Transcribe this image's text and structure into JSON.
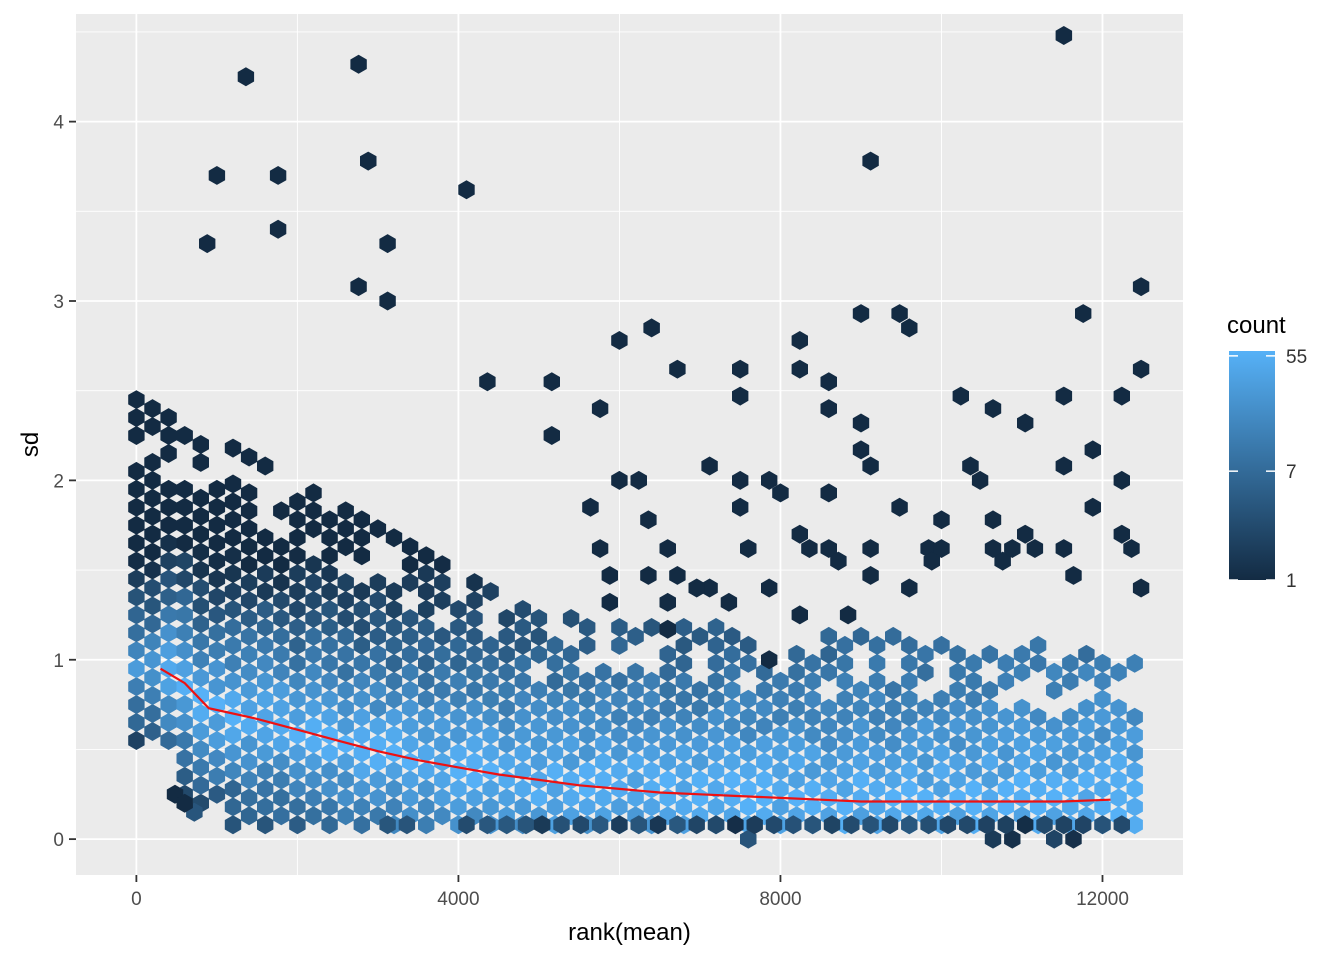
{
  "chart_data": {
    "type": "hexbin",
    "xlabel": "rank(mean)",
    "ylabel": "sd",
    "xlim": [
      -750,
      13000
    ],
    "ylim": [
      -0.2,
      4.6
    ],
    "x_ticks": [
      0,
      4000,
      8000,
      12000
    ],
    "x_tick_labels": [
      "0",
      "4000",
      "8000",
      "12000"
    ],
    "y_ticks": [
      0,
      1,
      2,
      3,
      4
    ],
    "y_tick_labels": [
      "0",
      "1",
      "2",
      "3",
      "4"
    ],
    "grid": true,
    "legend": {
      "title": "count",
      "position": "right",
      "scale": "log",
      "ticks": [
        1,
        7,
        55
      ],
      "tick_labels": [
        "1",
        "7",
        "55"
      ],
      "max_count": 60
    },
    "colors": {
      "panel_bg": "#ebebeb",
      "grid_major": "#ffffff",
      "low": "#132b43",
      "high": "#56b1f7",
      "trend": "#ee1111"
    },
    "hex_columns": {
      "x_step": 200,
      "y_step": 0.1,
      "x_start": 0,
      "x_end": 12400,
      "base_y_lo": 0.05,
      "sparse_outliers": [
        [
          1360,
          4.25
        ],
        [
          2760,
          4.32
        ],
        [
          11520,
          4.48
        ],
        [
          1000,
          3.7
        ],
        [
          1760,
          3.7
        ],
        [
          2880,
          3.78
        ],
        [
          4100,
          3.62
        ],
        [
          9120,
          3.78
        ],
        [
          880,
          3.32
        ],
        [
          3120,
          3.32
        ],
        [
          1760,
          3.4
        ],
        [
          2760,
          3.08
        ],
        [
          3120,
          3.0
        ],
        [
          12480,
          3.08
        ],
        [
          9000,
          2.93
        ],
        [
          9480,
          2.93
        ],
        [
          9600,
          2.85
        ],
        [
          11760,
          2.93
        ],
        [
          6400,
          2.85
        ],
        [
          6000,
          2.78
        ],
        [
          6720,
          2.62
        ],
        [
          7500,
          2.62
        ],
        [
          7500,
          2.47
        ],
        [
          8240,
          2.78
        ],
        [
          8240,
          2.62
        ],
        [
          8600,
          2.55
        ],
        [
          8600,
          2.4
        ],
        [
          12480,
          2.62
        ],
        [
          10240,
          2.47
        ],
        [
          10640,
          2.4
        ],
        [
          11520,
          2.47
        ],
        [
          12240,
          2.47
        ],
        [
          11040,
          2.32
        ],
        [
          9000,
          2.32
        ],
        [
          9000,
          2.17
        ],
        [
          9120,
          2.08
        ],
        [
          5760,
          2.4
        ],
        [
          5160,
          2.55
        ],
        [
          5160,
          2.25
        ],
        [
          4360,
          2.55
        ],
        [
          7120,
          2.08
        ],
        [
          6000,
          2.0
        ],
        [
          6240,
          2.0
        ],
        [
          7500,
          2.0
        ],
        [
          7860,
          2.0
        ],
        [
          8000,
          1.93
        ],
        [
          7500,
          1.85
        ],
        [
          5640,
          1.85
        ],
        [
          6360,
          1.78
        ],
        [
          8600,
          1.93
        ],
        [
          9480,
          1.85
        ],
        [
          10360,
          2.08
        ],
        [
          10480,
          2.0
        ],
        [
          11520,
          2.08
        ],
        [
          11880,
          2.17
        ],
        [
          12240,
          2.0
        ],
        [
          11880,
          1.85
        ],
        [
          10000,
          1.78
        ],
        [
          10640,
          1.78
        ],
        [
          11040,
          1.7
        ],
        [
          12240,
          1.7
        ],
        [
          12360,
          1.62
        ],
        [
          6600,
          1.62
        ],
        [
          5760,
          1.62
        ],
        [
          7600,
          1.62
        ],
        [
          8240,
          1.7
        ],
        [
          8360,
          1.62
        ],
        [
          8600,
          1.62
        ],
        [
          8720,
          1.55
        ],
        [
          9120,
          1.62
        ],
        [
          9120,
          1.47
        ],
        [
          9840,
          1.62
        ],
        [
          10000,
          1.62
        ],
        [
          9880,
          1.55
        ],
        [
          10640,
          1.62
        ],
        [
          10760,
          1.55
        ],
        [
          10880,
          1.62
        ],
        [
          11160,
          1.62
        ],
        [
          11520,
          1.62
        ],
        [
          11640,
          1.47
        ],
        [
          9600,
          1.4
        ],
        [
          12480,
          1.4
        ],
        [
          7360,
          1.32
        ],
        [
          7120,
          1.4
        ],
        [
          6960,
          1.4
        ],
        [
          6720,
          1.47
        ],
        [
          5880,
          1.47
        ],
        [
          5880,
          1.32
        ],
        [
          6360,
          1.47
        ],
        [
          6600,
          1.32
        ],
        [
          6600,
          1.17
        ],
        [
          8240,
          1.25
        ],
        [
          8840,
          1.25
        ],
        [
          7860,
          1.4
        ],
        [
          7860,
          1.0
        ],
        [
          7600,
          0.0
        ],
        [
          10640,
          0.0
        ],
        [
          10880,
          0.0
        ],
        [
          11400,
          0.0
        ],
        [
          11640,
          0.0
        ],
        [
          3120,
          0.08
        ],
        [
          3360,
          0.08
        ],
        [
          4100,
          0.08
        ],
        [
          4360,
          0.08
        ],
        [
          4600,
          0.08
        ],
        [
          4840,
          0.08
        ],
        [
          5040,
          0.08
        ],
        [
          5280,
          0.08
        ],
        [
          5520,
          0.08
        ],
        [
          5760,
          0.08
        ],
        [
          6000,
          0.08
        ],
        [
          6240,
          0.08
        ],
        [
          6480,
          0.08
        ],
        [
          6720,
          0.08
        ],
        [
          6960,
          0.08
        ],
        [
          7200,
          0.08
        ],
        [
          7440,
          0.08
        ],
        [
          7680,
          0.08
        ],
        [
          7920,
          0.08
        ],
        [
          8160,
          0.08
        ],
        [
          8400,
          0.08
        ],
        [
          8640,
          0.08
        ],
        [
          8880,
          0.08
        ],
        [
          9120,
          0.08
        ],
        [
          9360,
          0.08
        ],
        [
          9600,
          0.08
        ],
        [
          9840,
          0.08
        ],
        [
          10080,
          0.08
        ],
        [
          10320,
          0.08
        ],
        [
          10560,
          0.08
        ],
        [
          10800,
          0.08
        ],
        [
          11040,
          0.08
        ],
        [
          11280,
          0.08
        ],
        [
          11520,
          0.08
        ],
        [
          11760,
          0.08
        ],
        [
          12000,
          0.08
        ],
        [
          12240,
          0.08
        ],
        [
          720,
          0.15
        ],
        [
          480,
          0.25
        ],
        [
          600,
          0.2
        ]
      ]
    },
    "trend": {
      "name": "",
      "x": [
        300,
        600,
        900,
        1500,
        2000,
        2500,
        3000,
        3500,
        4000,
        4500,
        5000,
        5500,
        6000,
        6500,
        7000,
        7500,
        8000,
        8500,
        9000,
        9500,
        10000,
        10500,
        11000,
        11500,
        12100
      ],
      "y": [
        0.95,
        0.87,
        0.73,
        0.67,
        0.61,
        0.55,
        0.49,
        0.44,
        0.4,
        0.36,
        0.33,
        0.3,
        0.28,
        0.26,
        0.25,
        0.24,
        0.23,
        0.22,
        0.21,
        0.21,
        0.21,
        0.21,
        0.21,
        0.21,
        0.22
      ]
    }
  }
}
